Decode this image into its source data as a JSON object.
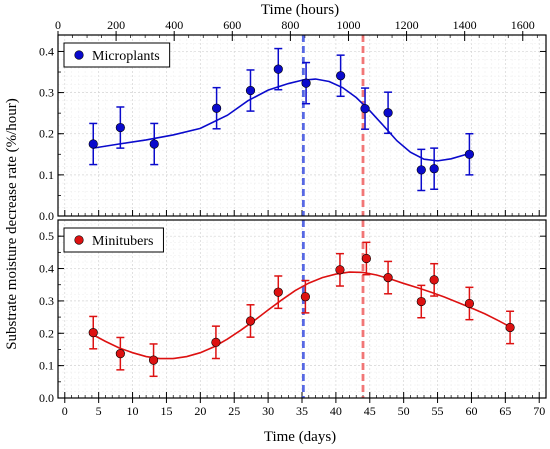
{
  "chart_data": [
    {
      "type": "scatter",
      "panel": "top",
      "xlabel_top": "Time (hours)",
      "xlim_top": [
        0,
        1680
      ],
      "xticks_top": [
        0,
        200,
        400,
        600,
        800,
        1000,
        1200,
        1400,
        1600
      ],
      "xlim": [
        -1,
        71
      ],
      "ylim": [
        0.0,
        0.44
      ],
      "yticks": [
        0.0,
        0.1,
        0.2,
        0.3,
        0.4
      ],
      "grid": true,
      "legend_position": "top-left",
      "series": [
        {
          "name": "Microplants",
          "color": "#0a0acc",
          "points": [
            {
              "x": 4.2,
              "y": 0.175,
              "err": 0.05
            },
            {
              "x": 8.2,
              "y": 0.215,
              "err": 0.05
            },
            {
              "x": 13.2,
              "y": 0.175,
              "err": 0.05
            },
            {
              "x": 22.4,
              "y": 0.262,
              "err": 0.05
            },
            {
              "x": 27.4,
              "y": 0.305,
              "err": 0.05
            },
            {
              "x": 31.5,
              "y": 0.357,
              "err": 0.05
            },
            {
              "x": 35.6,
              "y": 0.323,
              "err": 0.05
            },
            {
              "x": 40.7,
              "y": 0.341,
              "err": 0.05
            },
            {
              "x": 44.3,
              "y": 0.261,
              "err": 0.05
            },
            {
              "x": 47.7,
              "y": 0.251,
              "err": 0.05
            },
            {
              "x": 52.6,
              "y": 0.112,
              "err": 0.05
            },
            {
              "x": 54.5,
              "y": 0.115,
              "err": 0.05
            },
            {
              "x": 59.7,
              "y": 0.15,
              "err": 0.05
            }
          ],
          "fit_curve": [
            [
              4.2,
              0.165
            ],
            [
              8,
              0.175
            ],
            [
              12,
              0.185
            ],
            [
              16,
              0.197
            ],
            [
              20,
              0.213
            ],
            [
              24,
              0.245
            ],
            [
              27,
              0.28
            ],
            [
              30,
              0.306
            ],
            [
              33,
              0.322
            ],
            [
              35,
              0.33
            ],
            [
              37,
              0.333
            ],
            [
              39,
              0.327
            ],
            [
              41,
              0.312
            ],
            [
              43,
              0.288
            ],
            [
              45,
              0.256
            ],
            [
              47,
              0.22
            ],
            [
              49,
              0.183
            ],
            [
              51,
              0.155
            ],
            [
              53,
              0.138
            ],
            [
              55,
              0.134
            ],
            [
              57,
              0.139
            ],
            [
              59.7,
              0.152
            ]
          ]
        }
      ]
    },
    {
      "type": "scatter",
      "panel": "bottom",
      "xlabel": "Time (days)",
      "ylabel": "Substrate moisture decrease rate (%/hour)",
      "xlim": [
        -1,
        71
      ],
      "xticks": [
        0,
        5,
        10,
        15,
        20,
        25,
        30,
        35,
        40,
        45,
        50,
        55,
        60,
        65,
        70
      ],
      "ylim": [
        0.0,
        0.55
      ],
      "yticks": [
        0.0,
        0.1,
        0.2,
        0.3,
        0.4,
        0.5
      ],
      "grid": true,
      "legend_position": "top-left",
      "series": [
        {
          "name": "Minitubers",
          "color": "#dd1111",
          "points": [
            {
              "x": 4.2,
              "y": 0.202,
              "err": 0.05
            },
            {
              "x": 8.2,
              "y": 0.137,
              "err": 0.05
            },
            {
              "x": 13.1,
              "y": 0.117,
              "err": 0.05
            },
            {
              "x": 22.3,
              "y": 0.172,
              "err": 0.05
            },
            {
              "x": 27.4,
              "y": 0.238,
              "err": 0.05
            },
            {
              "x": 31.5,
              "y": 0.327,
              "err": 0.05
            },
            {
              "x": 35.5,
              "y": 0.313,
              "err": 0.05
            },
            {
              "x": 40.6,
              "y": 0.396,
              "err": 0.05
            },
            {
              "x": 44.5,
              "y": 0.431,
              "err": 0.05
            },
            {
              "x": 47.7,
              "y": 0.372,
              "err": 0.05
            },
            {
              "x": 52.6,
              "y": 0.298,
              "err": 0.05
            },
            {
              "x": 54.5,
              "y": 0.365,
              "err": 0.05
            },
            {
              "x": 59.7,
              "y": 0.292,
              "err": 0.05
            },
            {
              "x": 65.7,
              "y": 0.218,
              "err": 0.05
            }
          ],
          "fit_curve": [
            [
              4.2,
              0.195
            ],
            [
              6,
              0.175
            ],
            [
              8,
              0.155
            ],
            [
              10,
              0.14
            ],
            [
              12,
              0.128
            ],
            [
              14,
              0.122
            ],
            [
              16,
              0.122
            ],
            [
              18,
              0.128
            ],
            [
              20,
              0.14
            ],
            [
              22,
              0.158
            ],
            [
              24,
              0.182
            ],
            [
              26,
              0.21
            ],
            [
              28,
              0.24
            ],
            [
              30,
              0.272
            ],
            [
              32,
              0.303
            ],
            [
              34,
              0.332
            ],
            [
              36,
              0.355
            ],
            [
              38,
              0.372
            ],
            [
              40,
              0.383
            ],
            [
              42,
              0.389
            ],
            [
              44,
              0.388
            ],
            [
              46,
              0.38
            ],
            [
              48,
              0.368
            ],
            [
              50,
              0.354
            ],
            [
              52,
              0.341
            ],
            [
              54,
              0.327
            ],
            [
              56,
              0.312
            ],
            [
              58,
              0.295
            ],
            [
              60,
              0.278
            ],
            [
              62,
              0.26
            ],
            [
              64,
              0.239
            ],
            [
              65.7,
              0.22
            ]
          ]
        }
      ]
    }
  ],
  "reference_lines": [
    {
      "x": 35.2,
      "color": "#3b4fe0",
      "style": "dashed"
    },
    {
      "x": 44.0,
      "color": "#f06060",
      "style": "dashed"
    }
  ]
}
